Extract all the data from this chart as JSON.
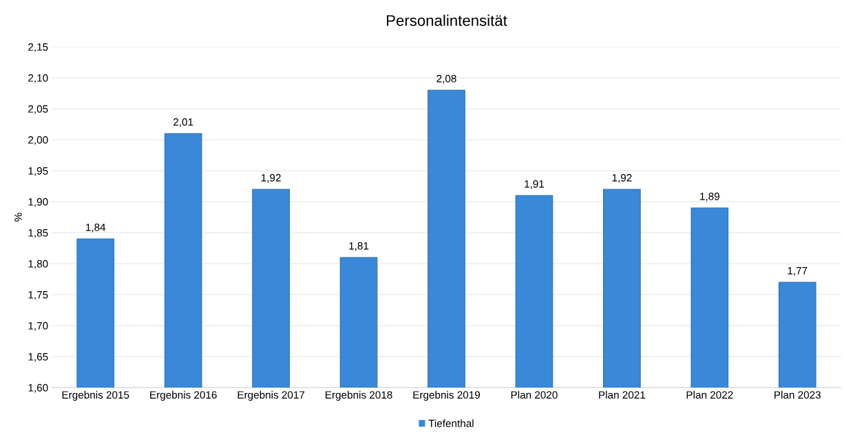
{
  "chart_data": {
    "type": "bar",
    "title": "Personalintensität",
    "ylabel": "%",
    "categories": [
      "Ergebnis 2015",
      "Ergebnis 2016",
      "Ergebnis 2017",
      "Ergebnis 2018",
      "Ergebnis 2019",
      "Plan 2020",
      "Plan 2021",
      "Plan 2022",
      "Plan 2023"
    ],
    "series": [
      {
        "name": "Tiefenthal",
        "color": "#3a88d8",
        "values": [
          1.84,
          2.01,
          1.92,
          1.81,
          2.08,
          1.91,
          1.92,
          1.89,
          1.77
        ],
        "value_labels": [
          "1,84",
          "2,01",
          "1,92",
          "1,81",
          "2,08",
          "1,91",
          "1,92",
          "1,89",
          "1,77"
        ]
      }
    ],
    "ylim": [
      1.6,
      2.15
    ],
    "yticks": [
      {
        "value": 1.6,
        "label": "1,60"
      },
      {
        "value": 1.65,
        "label": "1,65"
      },
      {
        "value": 1.7,
        "label": "1,70"
      },
      {
        "value": 1.75,
        "label": "1,75"
      },
      {
        "value": 1.8,
        "label": "1,80"
      },
      {
        "value": 1.85,
        "label": "1,85"
      },
      {
        "value": 1.9,
        "label": "1,90"
      },
      {
        "value": 1.95,
        "label": "1,95"
      },
      {
        "value": 2.0,
        "label": "2,00"
      },
      {
        "value": 2.05,
        "label": "2,05"
      },
      {
        "value": 2.1,
        "label": "2,10"
      },
      {
        "value": 2.15,
        "label": "2,15"
      }
    ],
    "grid": "y",
    "legend": "bottom"
  }
}
